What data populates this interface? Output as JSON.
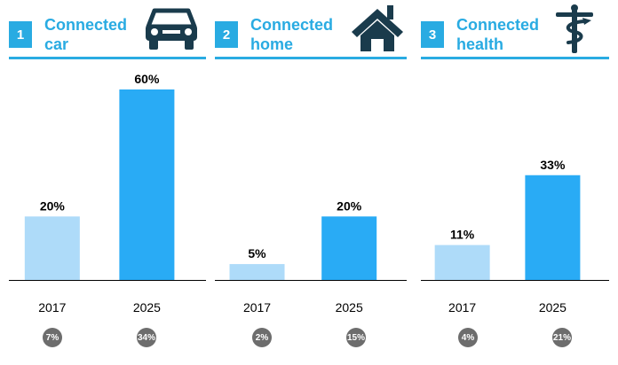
{
  "colors": {
    "accent": "#29abe2",
    "bar_2017": "#aedbf9",
    "bar_2025": "#29abf5",
    "title_text": "#29abe2",
    "icon": "#1a3b4c",
    "bubble": "#6d6d6d",
    "axis": "#000000"
  },
  "panels": [
    {
      "number": "1",
      "title_line1": "Connected",
      "title_line2": "car",
      "icon": "car-icon",
      "chart_data": {
        "type": "bar",
        "categories": [
          "2017",
          "2025"
        ],
        "values": [
          20,
          60
        ],
        "data_labels": [
          "20%",
          "60%"
        ],
        "ylim": [
          0,
          60
        ]
      },
      "growth": [
        "7%",
        "34%"
      ]
    },
    {
      "number": "2",
      "title_line1": "Connected",
      "title_line2": "home",
      "icon": "house-icon",
      "chart_data": {
        "type": "bar",
        "categories": [
          "2017",
          "2025"
        ],
        "values": [
          5,
          20
        ],
        "data_labels": [
          "5%",
          "20%"
        ],
        "ylim": [
          0,
          60
        ]
      },
      "growth": [
        "2%",
        "15%"
      ]
    },
    {
      "number": "3",
      "title_line1": "Connected",
      "title_line2": "health",
      "icon": "caduceus-icon",
      "chart_data": {
        "type": "bar",
        "categories": [
          "2017",
          "2025"
        ],
        "values": [
          11,
          33
        ],
        "data_labels": [
          "11%",
          "33%"
        ],
        "ylim": [
          0,
          60
        ]
      },
      "growth": [
        "4%",
        "21%"
      ]
    }
  ]
}
